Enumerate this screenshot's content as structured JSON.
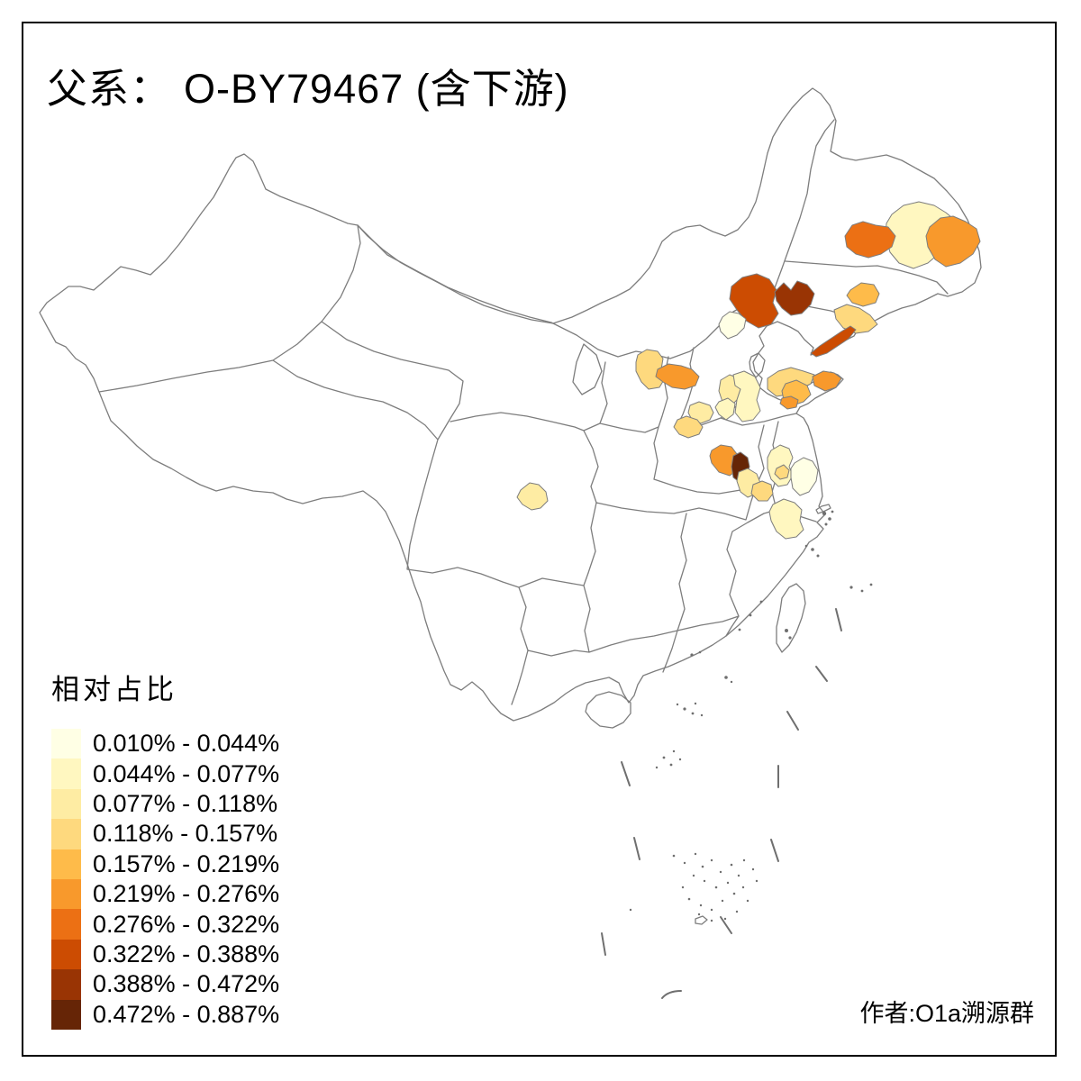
{
  "title": {
    "prefix": "父系：",
    "main": "O-BY79467 (含下游)"
  },
  "legend": {
    "title": "相对占比",
    "classes": [
      {
        "label": "0.010% - 0.044%",
        "color": "#ffffe5"
      },
      {
        "label": "0.044% - 0.077%",
        "color": "#fff7c0"
      },
      {
        "label": "0.077% - 0.118%",
        "color": "#feeca3"
      },
      {
        "label": "0.118% - 0.157%",
        "color": "#fed97e"
      },
      {
        "label": "0.157% - 0.219%",
        "color": "#febb4a"
      },
      {
        "label": "0.219% - 0.276%",
        "color": "#f8992c"
      },
      {
        "label": "0.276% - 0.322%",
        "color": "#ec7014"
      },
      {
        "label": "0.322% - 0.388%",
        "color": "#cc4c02"
      },
      {
        "label": "0.388% - 0.472%",
        "color": "#993404"
      },
      {
        "label": "0.472% - 0.887%",
        "color": "#662506"
      }
    ]
  },
  "author": "作者:O1a溯源群",
  "map": {
    "base_fill": "#d3d3d3",
    "border_color": "#7d7d7d",
    "speck_color": "#6f6f6f",
    "frame_color": "#000000",
    "regions": [
      {
        "id": "r1",
        "class": 2
      },
      {
        "id": "r2",
        "class": 7
      },
      {
        "id": "r3",
        "class": 6
      },
      {
        "id": "r4",
        "class": 5
      },
      {
        "id": "r5",
        "class": 4
      },
      {
        "id": "r6",
        "class": 8
      },
      {
        "id": "r7",
        "class": 8
      },
      {
        "id": "r8",
        "class": 9
      },
      {
        "id": "r9",
        "class": 1
      },
      {
        "id": "r10",
        "class": 4
      },
      {
        "id": "r11",
        "class": 6
      },
      {
        "id": "r12",
        "class": 3
      },
      {
        "id": "r13",
        "class": 4
      },
      {
        "id": "s1",
        "class": 3
      },
      {
        "id": "s2",
        "class": 2
      },
      {
        "id": "s3",
        "class": 4
      },
      {
        "id": "s4",
        "class": 5
      },
      {
        "id": "s5",
        "class": 6
      },
      {
        "id": "s6",
        "class": 6
      },
      {
        "id": "h1",
        "class": 6
      },
      {
        "id": "h2",
        "class": 10
      },
      {
        "id": "h3",
        "class": 3
      },
      {
        "id": "h4",
        "class": 4
      },
      {
        "id": "h5",
        "class": 2
      },
      {
        "id": "j1",
        "class": 2
      },
      {
        "id": "j2",
        "class": 4
      },
      {
        "id": "j3",
        "class": 1
      },
      {
        "id": "a1",
        "class": 2
      },
      {
        "id": "c1",
        "class": 3
      }
    ]
  }
}
